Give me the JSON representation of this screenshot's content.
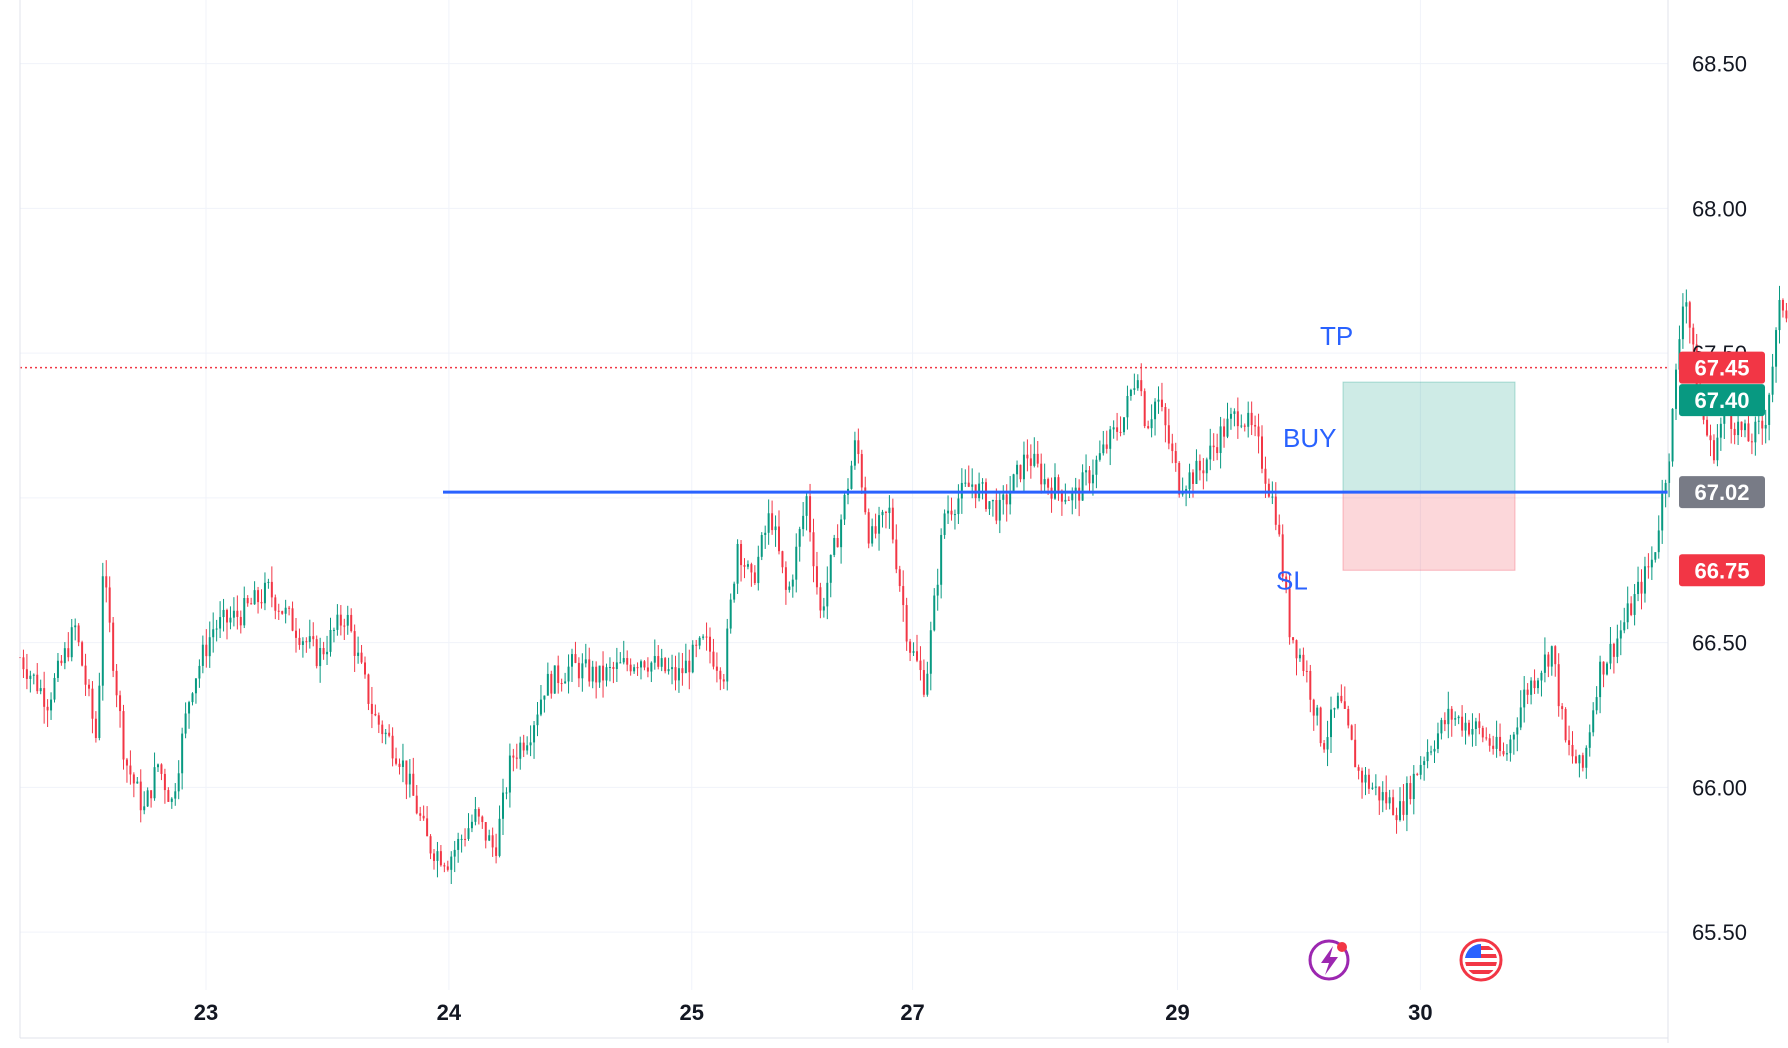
{
  "chart_data": {
    "type": "candlestick",
    "y_axis": {
      "range": [
        65.3,
        68.72
      ],
      "ticks": [
        "65.50",
        "66.00",
        "66.50",
        "67.00",
        "67.50",
        "68.00",
        "68.50"
      ]
    },
    "x_axis": {
      "ticks": [
        "23",
        "24",
        "25",
        "27",
        "29",
        "30"
      ]
    },
    "grid": true,
    "price_path": [
      [
        0,
        66.45
      ],
      [
        0.1,
        66.3
      ],
      [
        0.2,
        66.55
      ],
      [
        0.28,
        66.15
      ],
      [
        0.3,
        66.75
      ],
      [
        0.38,
        66.1
      ],
      [
        0.45,
        65.92
      ],
      [
        0.5,
        66.08
      ],
      [
        0.55,
        65.95
      ],
      [
        0.62,
        66.35
      ],
      [
        0.7,
        66.55
      ],
      [
        0.8,
        66.6
      ],
      [
        0.9,
        66.68
      ],
      [
        1.0,
        66.55
      ],
      [
        1.08,
        66.45
      ],
      [
        1.18,
        66.6
      ],
      [
        1.28,
        66.25
      ],
      [
        1.38,
        66.1
      ],
      [
        1.48,
        65.8
      ],
      [
        1.55,
        65.75
      ],
      [
        1.65,
        65.9
      ],
      [
        1.72,
        65.78
      ],
      [
        1.78,
        66.1
      ],
      [
        1.85,
        66.2
      ],
      [
        1.9,
        66.35
      ],
      [
        2.0,
        66.42
      ],
      [
        2.1,
        66.38
      ],
      [
        2.25,
        66.45
      ],
      [
        2.38,
        66.38
      ],
      [
        2.48,
        66.5
      ],
      [
        2.55,
        66.4
      ],
      [
        2.6,
        66.85
      ],
      [
        2.65,
        66.7
      ],
      [
        2.72,
        66.95
      ],
      [
        2.78,
        66.65
      ],
      [
        2.85,
        67.0
      ],
      [
        2.9,
        66.6
      ],
      [
        2.98,
        66.95
      ],
      [
        3.03,
        67.2
      ],
      [
        3.08,
        66.85
      ],
      [
        3.15,
        66.95
      ],
      [
        3.22,
        66.5
      ],
      [
        3.28,
        66.35
      ],
      [
        3.35,
        66.95
      ],
      [
        3.45,
        67.05
      ],
      [
        3.55,
        66.95
      ],
      [
        3.65,
        67.15
      ],
      [
        3.72,
        67.05
      ],
      [
        3.82,
        67.0
      ],
      [
        3.9,
        67.12
      ],
      [
        4.0,
        67.28
      ],
      [
        4.05,
        67.45
      ],
      [
        4.08,
        67.25
      ],
      [
        4.12,
        67.35
      ],
      [
        4.2,
        67.05
      ],
      [
        4.28,
        67.1
      ],
      [
        4.35,
        67.22
      ],
      [
        4.42,
        67.3
      ],
      [
        4.48,
        67.2
      ],
      [
        4.55,
        66.95
      ],
      [
        4.6,
        66.55
      ],
      [
        4.66,
        66.4
      ],
      [
        4.72,
        66.15
      ],
      [
        4.78,
        66.3
      ],
      [
        4.85,
        66.05
      ],
      [
        4.92,
        65.98
      ],
      [
        5.0,
        65.92
      ],
      [
        5.08,
        66.1
      ],
      [
        5.18,
        66.25
      ],
      [
        5.28,
        66.2
      ],
      [
        5.38,
        66.1
      ],
      [
        5.45,
        66.32
      ],
      [
        5.55,
        66.48
      ],
      [
        5.6,
        66.15
      ],
      [
        5.66,
        66.05
      ],
      [
        5.72,
        66.4
      ],
      [
        5.78,
        66.5
      ],
      [
        5.85,
        66.65
      ],
      [
        5.92,
        66.8
      ],
      [
        5.98,
        67.2
      ],
      [
        6.03,
        67.75
      ],
      [
        6.08,
        67.35
      ],
      [
        6.13,
        67.15
      ],
      [
        6.18,
        67.3
      ],
      [
        6.26,
        67.2
      ],
      [
        6.32,
        67.25
      ],
      [
        6.38,
        67.68
      ],
      [
        6.42,
        67.62
      ],
      [
        6.47,
        67.85
      ],
      [
        6.55,
        67.72
      ],
      [
        6.62,
        67.68
      ],
      [
        6.68,
        67.55
      ],
      [
        6.72,
        67.52
      ],
      [
        6.76,
        67.45
      ]
    ],
    "support_line": {
      "value": 67.02,
      "label": "67.02",
      "color": "#2962ff"
    },
    "last_price": {
      "value": 67.45,
      "label": "67.45",
      "color": "#f23645"
    },
    "position": {
      "side_label": "BUY",
      "entry": 67.02,
      "take_profit": {
        "value": 67.4,
        "label": "67.40",
        "text": "TP",
        "color": "#089981"
      },
      "stop_loss": {
        "value": 66.75,
        "label": "66.75",
        "text": "SL",
        "color": "#f23645"
      }
    },
    "colors": {
      "up": "#089981",
      "down": "#f23645",
      "grid": "#f0f3fa",
      "axis_text": "#131722"
    },
    "icons": [
      "lightning-event-icon",
      "us-flag-event-icon"
    ]
  }
}
